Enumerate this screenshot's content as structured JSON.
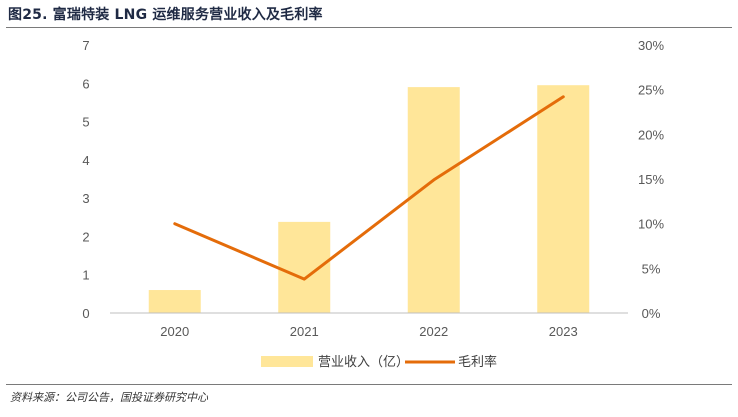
{
  "header": {
    "title": "图25. 富瑞特装 LNG 运维服务营业收入及毛利率"
  },
  "footer": {
    "source": "资料来源：公司公告，国投证券研究中心"
  },
  "chart_data": {
    "type": "bar",
    "categories": [
      "2020",
      "2021",
      "2022",
      "2023"
    ],
    "series": [
      {
        "name": "营业收入（亿）",
        "type": "bar",
        "axis": "left",
        "color": "#FFE699",
        "values": [
          0.6,
          2.38,
          5.9,
          5.95
        ]
      },
      {
        "name": "毛利率",
        "type": "line",
        "axis": "right",
        "color": "#E46C0A",
        "values": [
          10.0,
          3.8,
          14.9,
          24.2
        ]
      }
    ],
    "y_left": {
      "ylim": [
        0,
        7
      ],
      "ticks": [
        "0",
        "1",
        "2",
        "3",
        "4",
        "5",
        "6",
        "7"
      ]
    },
    "y_right": {
      "ylim": [
        0,
        30
      ],
      "ticks": [
        "0%",
        "5%",
        "10%",
        "15%",
        "20%",
        "25%",
        "30%"
      ]
    },
    "grid": false,
    "legend": "bottom"
  }
}
